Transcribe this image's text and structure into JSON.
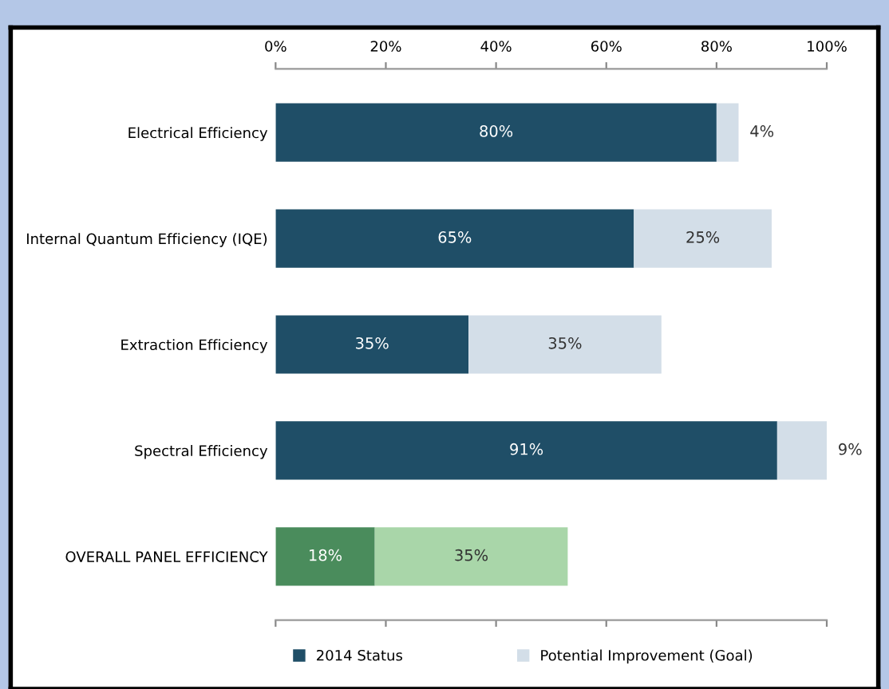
{
  "chart_data": {
    "type": "bar",
    "orientation": "horizontal",
    "stacked": true,
    "categories": [
      "Electrical Efficiency",
      "Internal Quantum Efficiency (IQE)",
      "Extraction Efficiency",
      "Spectral Efficiency",
      "OVERALL PANEL EFFICIENCY"
    ],
    "series": [
      {
        "name": "2014 Status",
        "color": "#1f4e67",
        "colors": [
          "#1f4e67",
          "#1f4e67",
          "#1f4e67",
          "#1f4e67",
          "#4a8c5c"
        ],
        "values": [
          80,
          65,
          35,
          91,
          18
        ],
        "value_labels": [
          "80%",
          "65%",
          "35%",
          "91%",
          "18%"
        ]
      },
      {
        "name": "Potential Improvement (Goal)",
        "color": "#d3dee8",
        "colors": [
          "#d3dee8",
          "#d3dee8",
          "#d3dee8",
          "#d3dee8",
          "#a9d6a9"
        ],
        "values": [
          4,
          25,
          35,
          9,
          35
        ],
        "value_labels": [
          "4%",
          "25%",
          "35%",
          "9%",
          "35%"
        ]
      }
    ],
    "xlim": [
      0,
      100
    ],
    "xticks": [
      {
        "value": 0,
        "label": "0%"
      },
      {
        "value": 20,
        "label": "20%"
      },
      {
        "value": 40,
        "label": "40%"
      },
      {
        "value": 60,
        "label": "60%"
      },
      {
        "value": 80,
        "label": "80%"
      },
      {
        "value": 100,
        "label": "100%"
      }
    ],
    "legend": "bottom",
    "grid": false
  }
}
